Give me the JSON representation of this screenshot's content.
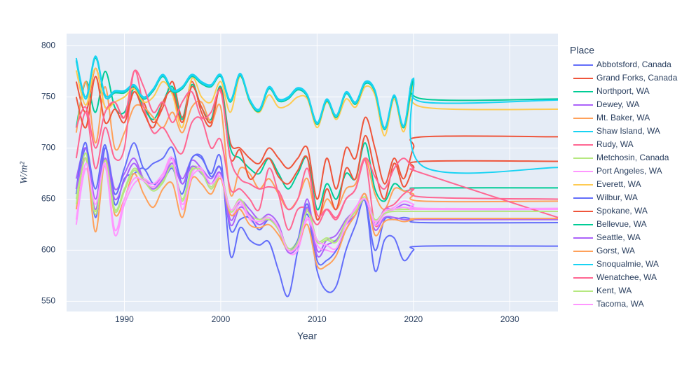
{
  "chart_data": {
    "type": "line",
    "x_label": "Year",
    "y_label": "W/m²",
    "legend_title": "Place",
    "legend": "right",
    "grid": true,
    "x": [
      1985,
      1986,
      1987,
      1988,
      1989,
      1990,
      1991,
      1992,
      1993,
      1994,
      1995,
      1996,
      1997,
      1998,
      1999,
      2000,
      2001,
      2002,
      2003,
      2004,
      2005,
      2006,
      2007,
      2008,
      2009,
      2010,
      2011,
      2012,
      2013,
      2014,
      2015,
      2016,
      2017,
      2018,
      2019,
      2020,
      2021,
      2035
    ],
    "xlim": [
      1984,
      2035
    ],
    "xticks": [
      1990,
      2000,
      2010,
      2020,
      2030
    ],
    "ylim": [
      540,
      812
    ],
    "yticks": [
      550,
      600,
      650,
      700,
      750,
      800
    ],
    "series": [
      {
        "name": "Abbotsford, Canada",
        "color": "#636efa",
        "values": [
          655,
          700,
          660,
          703,
          645,
          670,
          675,
          680,
          665,
          668,
          680,
          655,
          690,
          690,
          675,
          690,
          595,
          622,
          610,
          605,
          608,
          580,
          555,
          600,
          635,
          580,
          560,
          565,
          600,
          625,
          648,
          580,
          610,
          612,
          590,
          600,
          604,
          604
        ]
      },
      {
        "name": "Grand Forks, Canada",
        "color": "#EF553B",
        "values": [
          765,
          735,
          778,
          740,
          745,
          730,
          760,
          745,
          725,
          740,
          765,
          730,
          765,
          735,
          722,
          760,
          705,
          700,
          690,
          685,
          700,
          690,
          680,
          690,
          700,
          650,
          690,
          660,
          700,
          690,
          730,
          700,
          665,
          690,
          670,
          700,
          711,
          711
        ]
      },
      {
        "name": "Northport, WA",
        "color": "#00cc96",
        "values": [
          720,
          765,
          735,
          775,
          740,
          735,
          758,
          740,
          728,
          745,
          760,
          728,
          762,
          740,
          728,
          760,
          700,
          690,
          680,
          675,
          690,
          675,
          660,
          675,
          690,
          640,
          665,
          650,
          675,
          670,
          705,
          660,
          648,
          665,
          658,
          660,
          661,
          661
        ]
      },
      {
        "name": "Dewey, WA",
        "color": "#ab63fa",
        "values": [
          670,
          700,
          650,
          700,
          660,
          675,
          690,
          670,
          665,
          672,
          690,
          670,
          688,
          680,
          670,
          680,
          630,
          648,
          640,
          630,
          635,
          625,
          600,
          610,
          650,
          600,
          610,
          615,
          630,
          640,
          655,
          625,
          640,
          640,
          645,
          642,
          640,
          640
        ]
      },
      {
        "name": "Mt. Baker, WA",
        "color": "#FFA15A",
        "values": [
          715,
          765,
          705,
          760,
          700,
          715,
          740,
          740,
          730,
          720,
          735,
          715,
          740,
          745,
          725,
          740,
          655,
          680,
          675,
          660,
          670,
          655,
          640,
          650,
          670,
          630,
          650,
          640,
          660,
          665,
          690,
          655,
          640,
          660,
          658,
          655,
          648,
          648
        ]
      },
      {
        "name": "Shaw Island, WA",
        "color": "#19d3f3",
        "values": [
          788,
          750,
          790,
          752,
          756,
          756,
          762,
          750,
          758,
          772,
          757,
          760,
          772,
          765,
          762,
          772,
          747,
          773,
          748,
          738,
          760,
          748,
          750,
          759,
          752,
          725,
          748,
          732,
          755,
          745,
          765,
          757,
          720,
          752,
          722,
          768,
          745,
          747
        ]
      },
      {
        "name": "Rudy, WA",
        "color": "#FF6692",
        "values": [
          690,
          735,
          680,
          720,
          690,
          700,
          775,
          740,
          715,
          720,
          705,
          695,
          725,
          728,
          700,
          708,
          660,
          660,
          650,
          640,
          680,
          655,
          620,
          640,
          640,
          625,
          640,
          632,
          650,
          660,
          688,
          625,
          640,
          645,
          655,
          660,
          652,
          650
        ]
      },
      {
        "name": "Metchosin, Canada",
        "color": "#B6E880",
        "values": [
          650,
          695,
          638,
          690,
          640,
          660,
          680,
          670,
          660,
          668,
          685,
          650,
          680,
          678,
          662,
          675,
          640,
          650,
          635,
          630,
          632,
          622,
          602,
          610,
          640,
          610,
          612,
          610,
          628,
          640,
          652,
          630,
          638,
          640,
          640,
          640,
          640,
          640
        ]
      },
      {
        "name": "Port Angeles, WA",
        "color": "#FF97FF",
        "values": [
          625,
          680,
          640,
          682,
          615,
          645,
          665,
          670,
          665,
          675,
          690,
          640,
          675,
          680,
          660,
          675,
          635,
          645,
          630,
          625,
          630,
          620,
          598,
          600,
          630,
          605,
          600,
          600,
          620,
          640,
          655,
          625,
          635,
          640,
          642,
          640,
          640,
          640
        ]
      },
      {
        "name": "Everett,  WA",
        "color": "#FECB52",
        "values": [
          776,
          742,
          778,
          740,
          745,
          750,
          758,
          745,
          750,
          765,
          752,
          720,
          768,
          750,
          745,
          765,
          735,
          770,
          745,
          735,
          752,
          740,
          742,
          750,
          748,
          720,
          745,
          728,
          748,
          740,
          760,
          752,
          712,
          748,
          716,
          762,
          740,
          738
        ]
      },
      {
        "name": "Wilbur, WA",
        "color": "#636efa",
        "values": [
          660,
          705,
          632,
          700,
          655,
          680,
          705,
          680,
          685,
          690,
          700,
          665,
          690,
          692,
          672,
          680,
          620,
          630,
          632,
          620,
          630,
          620,
          600,
          610,
          645,
          590,
          590,
          600,
          620,
          635,
          648,
          600,
          630,
          630,
          632,
          630,
          627,
          627
        ]
      },
      {
        "name": "Spokane, WA",
        "color": "#EF553B",
        "values": [
          750,
          720,
          770,
          725,
          738,
          725,
          755,
          735,
          720,
          745,
          755,
          725,
          760,
          740,
          725,
          758,
          690,
          698,
          670,
          680,
          690,
          672,
          665,
          678,
          690,
          630,
          660,
          640,
          680,
          670,
          712,
          678,
          650,
          685,
          662,
          680,
          687,
          687
        ]
      },
      {
        "name": "Bellevue, WA",
        "color": "#00cc96",
        "values": [
          785,
          748,
          788,
          750,
          754,
          754,
          760,
          748,
          756,
          770,
          755,
          758,
          770,
          763,
          760,
          770,
          745,
          771,
          746,
          736,
          758,
          746,
          748,
          757,
          750,
          723,
          746,
          730,
          753,
          743,
          763,
          755,
          718,
          750,
          720,
          766,
          748,
          748
        ]
      },
      {
        "name": "Seattle, WA",
        "color": "#ab63fa",
        "values": [
          660,
          690,
          640,
          690,
          650,
          668,
          685,
          668,
          660,
          670,
          685,
          665,
          682,
          675,
          665,
          675,
          625,
          642,
          635,
          625,
          630,
          620,
          598,
          605,
          642,
          595,
          605,
          610,
          625,
          635,
          650,
          620,
          632,
          632,
          630,
          630,
          630,
          630
        ]
      },
      {
        "name": "Gorst, WA",
        "color": "#FFA15A",
        "values": [
          640,
          690,
          618,
          688,
          635,
          650,
          675,
          655,
          642,
          660,
          665,
          632,
          670,
          665,
          655,
          670,
          635,
          640,
          625,
          622,
          625,
          615,
          600,
          605,
          625,
          585,
          585,
          595,
          620,
          635,
          655,
          615,
          628,
          630,
          628,
          630,
          631,
          631
        ]
      },
      {
        "name": "Snoqualmie, WA",
        "color": "#19d3f3",
        "values": [
          786,
          748,
          789,
          750,
          755,
          755,
          761,
          749,
          757,
          771,
          756,
          759,
          771,
          764,
          761,
          771,
          746,
          772,
          747,
          737,
          759,
          747,
          749,
          758,
          751,
          724,
          747,
          731,
          754,
          744,
          764,
          756,
          719,
          751,
          721,
          767,
          682,
          681
        ]
      },
      {
        "name": "Wenatchee, WA",
        "color": "#FF6692",
        "values": [
          720,
          740,
          700,
          735,
          745,
          730,
          775,
          760,
          735,
          745,
          725,
          745,
          755,
          730,
          735,
          755,
          690,
          670,
          665,
          660,
          662,
          658,
          640,
          650,
          680,
          635,
          640,
          630,
          650,
          660,
          690,
          672,
          660,
          680,
          690,
          680,
          675,
          632
        ]
      },
      {
        "name": "Kent, WA",
        "color": "#B6E880",
        "values": [
          645,
          690,
          635,
          688,
          638,
          658,
          678,
          668,
          658,
          666,
          682,
          648,
          678,
          676,
          660,
          672,
          638,
          648,
          632,
          628,
          630,
          620,
          600,
          608,
          638,
          608,
          610,
          608,
          626,
          638,
          650,
          628,
          636,
          638,
          638,
          638,
          638,
          638
        ]
      },
      {
        "name": "Tacoma, WA",
        "color": "#FF97FF",
        "values": [
          630,
          685,
          645,
          685,
          620,
          650,
          670,
          668,
          662,
          672,
          688,
          645,
          672,
          678,
          665,
          672,
          640,
          648,
          632,
          628,
          632,
          622,
          600,
          605,
          632,
          610,
          605,
          602,
          625,
          642,
          650,
          628,
          638,
          642,
          648,
          645,
          641,
          641
        ]
      }
    ]
  }
}
